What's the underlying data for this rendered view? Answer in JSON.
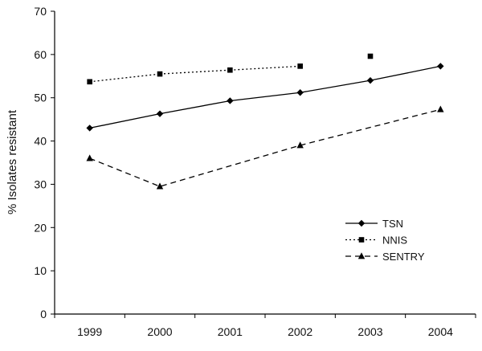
{
  "chart_data": {
    "type": "line",
    "title": "",
    "xlabel": "",
    "ylabel": "% Isolates resistant",
    "categories": [
      "1999",
      "2000",
      "2001",
      "2002",
      "2003",
      "2004"
    ],
    "ylim": [
      0,
      70
    ],
    "yticks": [
      0,
      10,
      20,
      30,
      40,
      50,
      60,
      70
    ],
    "grid": false,
    "legend_position": "bottom-right",
    "series": [
      {
        "name": "TSN",
        "values": [
          43.0,
          46.3,
          49.3,
          51.2,
          54.0,
          57.3
        ],
        "line_style": "solid",
        "marker": "diamond",
        "connect": [
          true,
          true,
          true,
          true,
          true
        ]
      },
      {
        "name": "NNIS",
        "values": [
          53.7,
          55.5,
          56.4,
          57.3,
          59.6,
          null
        ],
        "line_style": "dotted",
        "marker": "square",
        "connect": [
          true,
          true,
          true,
          false
        ]
      },
      {
        "name": "SENTRY",
        "values": [
          36.0,
          29.5,
          null,
          39.0,
          null,
          47.3
        ],
        "line_style": "dashed",
        "marker": "triangle",
        "connect_gaps": true
      }
    ]
  }
}
